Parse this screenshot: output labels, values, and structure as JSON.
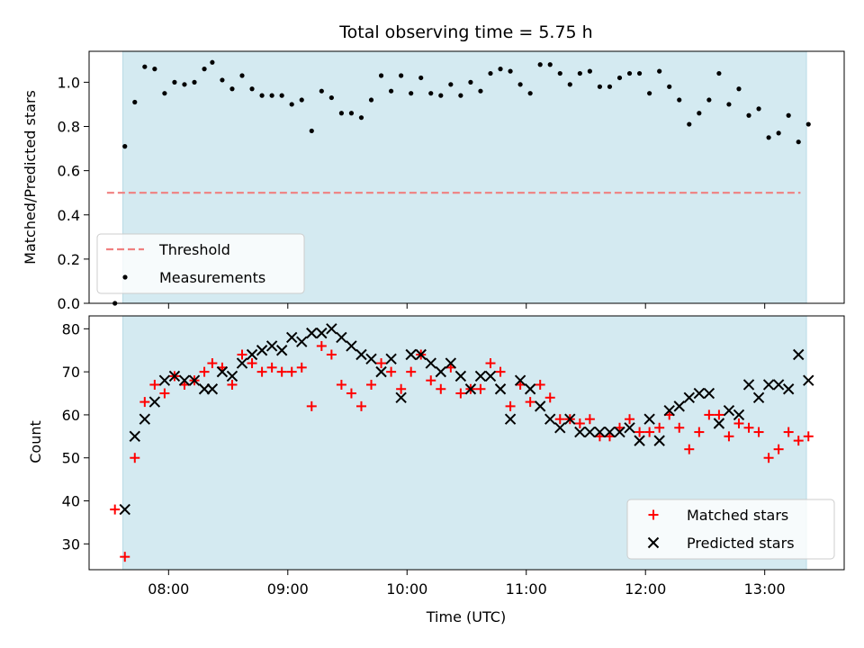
{
  "title": "Total observing time = 5.75 h",
  "colors": {
    "observing_band": "#d4eaf1",
    "threshold": "#f08080",
    "measurements": "#000000",
    "matched": "#ff0000",
    "predicted": "#000000"
  },
  "chart_data": [
    {
      "type": "scatter",
      "ylabel": "Matched/Predicted stars",
      "xlim": [
        "07:20",
        "13:40"
      ],
      "ylim": [
        0,
        1.14
      ],
      "yticks": [
        0.0,
        0.2,
        0.4,
        0.6,
        0.8,
        1.0
      ],
      "ytick_labels": [
        "0.0",
        "0.2",
        "0.4",
        "0.6",
        "0.8",
        "1.0"
      ],
      "xticks": [
        "08:00",
        "09:00",
        "10:00",
        "11:00",
        "12:00",
        "13:00"
      ],
      "shaded_span": [
        "07:37",
        "13:21"
      ],
      "threshold": {
        "name": "Threshold",
        "y": 0.5,
        "x_range": [
          "07:29",
          "13:18"
        ],
        "style": "dashed"
      },
      "legend": {
        "location": "lower-left",
        "entries": [
          "Threshold",
          "Measurements"
        ]
      },
      "series": [
        {
          "name": "Measurements",
          "marker": "dot",
          "points": [
            [
              "07:33",
              0.0
            ],
            [
              "07:38",
              0.71
            ],
            [
              "07:43",
              0.91
            ],
            [
              "07:48",
              1.07
            ],
            [
              "07:53",
              1.06
            ],
            [
              "07:58",
              0.95
            ],
            [
              "08:03",
              1.0
            ],
            [
              "08:08",
              0.99
            ],
            [
              "08:13",
              1.0
            ],
            [
              "08:18",
              1.06
            ],
            [
              "08:22",
              1.09
            ],
            [
              "08:27",
              1.01
            ],
            [
              "08:32",
              0.97
            ],
            [
              "08:37",
              1.03
            ],
            [
              "08:42",
              0.97
            ],
            [
              "08:47",
              0.94
            ],
            [
              "08:52",
              0.94
            ],
            [
              "08:57",
              0.94
            ],
            [
              "09:02",
              0.9
            ],
            [
              "09:07",
              0.92
            ],
            [
              "09:12",
              0.78
            ],
            [
              "09:17",
              0.96
            ],
            [
              "09:22",
              0.93
            ],
            [
              "09:27",
              0.86
            ],
            [
              "09:32",
              0.86
            ],
            [
              "09:37",
              0.84
            ],
            [
              "09:42",
              0.92
            ],
            [
              "09:47",
              1.03
            ],
            [
              "09:52",
              0.96
            ],
            [
              "09:57",
              1.03
            ],
            [
              "10:02",
              0.95
            ],
            [
              "10:07",
              1.02
            ],
            [
              "10:12",
              0.95
            ],
            [
              "10:17",
              0.94
            ],
            [
              "10:22",
              0.99
            ],
            [
              "10:27",
              0.94
            ],
            [
              "10:32",
              1.0
            ],
            [
              "10:37",
              0.96
            ],
            [
              "10:42",
              1.04
            ],
            [
              "10:47",
              1.06
            ],
            [
              "10:52",
              1.05
            ],
            [
              "10:57",
              0.99
            ],
            [
              "11:02",
              0.95
            ],
            [
              "11:07",
              1.08
            ],
            [
              "11:12",
              1.08
            ],
            [
              "11:17",
              1.04
            ],
            [
              "11:22",
              0.99
            ],
            [
              "11:27",
              1.04
            ],
            [
              "11:32",
              1.05
            ],
            [
              "11:37",
              0.98
            ],
            [
              "11:42",
              0.98
            ],
            [
              "11:47",
              1.02
            ],
            [
              "11:52",
              1.04
            ],
            [
              "11:57",
              1.04
            ],
            [
              "12:02",
              0.95
            ],
            [
              "12:07",
              1.05
            ],
            [
              "12:12",
              0.98
            ],
            [
              "12:17",
              0.92
            ],
            [
              "12:22",
              0.81
            ],
            [
              "12:27",
              0.86
            ],
            [
              "12:32",
              0.92
            ],
            [
              "12:37",
              1.04
            ],
            [
              "12:42",
              0.9
            ],
            [
              "12:47",
              0.97
            ],
            [
              "12:52",
              0.85
            ],
            [
              "12:57",
              0.88
            ],
            [
              "13:02",
              0.75
            ],
            [
              "13:07",
              0.77
            ],
            [
              "13:12",
              0.85
            ],
            [
              "13:17",
              0.73
            ],
            [
              "13:22",
              0.81
            ]
          ]
        }
      ]
    },
    {
      "type": "scatter",
      "xlabel": "Time (UTC)",
      "ylabel": "Count",
      "xlim": [
        "07:20",
        "13:40"
      ],
      "ylim": [
        24,
        83
      ],
      "yticks": [
        30,
        40,
        50,
        60,
        70,
        80
      ],
      "ytick_labels": [
        "30",
        "40",
        "50",
        "60",
        "70",
        "80"
      ],
      "xticks": [
        "08:00",
        "09:00",
        "10:00",
        "11:00",
        "12:00",
        "13:00"
      ],
      "shaded_span": [
        "07:37",
        "13:21"
      ],
      "legend": {
        "location": "lower-right",
        "entries": [
          "Matched stars",
          "Predicted stars"
        ]
      },
      "series": [
        {
          "name": "Matched stars",
          "marker": "plus",
          "points": [
            [
              "07:33",
              38
            ],
            [
              "07:38",
              27
            ],
            [
              "07:43",
              50
            ],
            [
              "07:48",
              63
            ],
            [
              "07:53",
              67
            ],
            [
              "07:58",
              65
            ],
            [
              "08:03",
              69
            ],
            [
              "08:08",
              67
            ],
            [
              "08:13",
              68
            ],
            [
              "08:18",
              70
            ],
            [
              "08:22",
              72
            ],
            [
              "08:27",
              71
            ],
            [
              "08:32",
              67
            ],
            [
              "08:37",
              74
            ],
            [
              "08:42",
              72
            ],
            [
              "08:47",
              70
            ],
            [
              "08:52",
              71
            ],
            [
              "08:57",
              70
            ],
            [
              "09:02",
              70
            ],
            [
              "09:07",
              71
            ],
            [
              "09:12",
              62
            ],
            [
              "09:17",
              76
            ],
            [
              "09:22",
              74
            ],
            [
              "09:27",
              67
            ],
            [
              "09:32",
              65
            ],
            [
              "09:37",
              62
            ],
            [
              "09:42",
              67
            ],
            [
              "09:47",
              72
            ],
            [
              "09:52",
              70
            ],
            [
              "09:57",
              66
            ],
            [
              "10:02",
              70
            ],
            [
              "10:07",
              74
            ],
            [
              "10:12",
              68
            ],
            [
              "10:17",
              66
            ],
            [
              "10:22",
              71
            ],
            [
              "10:27",
              65
            ],
            [
              "10:32",
              66
            ],
            [
              "10:37",
              66
            ],
            [
              "10:42",
              72
            ],
            [
              "10:47",
              70
            ],
            [
              "10:52",
              62
            ],
            [
              "10:57",
              67
            ],
            [
              "11:02",
              63
            ],
            [
              "11:07",
              67
            ],
            [
              "11:12",
              64
            ],
            [
              "11:17",
              59
            ],
            [
              "11:22",
              59
            ],
            [
              "11:27",
              58
            ],
            [
              "11:32",
              59
            ],
            [
              "11:37",
              55
            ],
            [
              "11:42",
              55
            ],
            [
              "11:47",
              57
            ],
            [
              "11:52",
              59
            ],
            [
              "11:57",
              56
            ],
            [
              "12:02",
              56
            ],
            [
              "12:07",
              57
            ],
            [
              "12:12",
              60
            ],
            [
              "12:17",
              57
            ],
            [
              "12:22",
              52
            ],
            [
              "12:27",
              56
            ],
            [
              "12:32",
              60
            ],
            [
              "12:37",
              60
            ],
            [
              "12:42",
              55
            ],
            [
              "12:47",
              58
            ],
            [
              "12:52",
              57
            ],
            [
              "12:57",
              56
            ],
            [
              "13:02",
              50
            ],
            [
              "13:07",
              52
            ],
            [
              "13:12",
              56
            ],
            [
              "13:17",
              54
            ],
            [
              "13:22",
              55
            ]
          ]
        },
        {
          "name": "Predicted stars",
          "marker": "x",
          "points": [
            [
              "07:38",
              38
            ],
            [
              "07:43",
              55
            ],
            [
              "07:48",
              59
            ],
            [
              "07:53",
              63
            ],
            [
              "07:58",
              68
            ],
            [
              "08:03",
              69
            ],
            [
              "08:08",
              68
            ],
            [
              "08:13",
              68
            ],
            [
              "08:18",
              66
            ],
            [
              "08:22",
              66
            ],
            [
              "08:27",
              70
            ],
            [
              "08:32",
              69
            ],
            [
              "08:37",
              72
            ],
            [
              "08:42",
              74
            ],
            [
              "08:47",
              75
            ],
            [
              "08:52",
              76
            ],
            [
              "08:57",
              75
            ],
            [
              "09:02",
              78
            ],
            [
              "09:07",
              77
            ],
            [
              "09:12",
              79
            ],
            [
              "09:17",
              79
            ],
            [
              "09:22",
              80
            ],
            [
              "09:27",
              78
            ],
            [
              "09:32",
              76
            ],
            [
              "09:37",
              74
            ],
            [
              "09:42",
              73
            ],
            [
              "09:47",
              70
            ],
            [
              "09:52",
              73
            ],
            [
              "09:57",
              64
            ],
            [
              "10:02",
              74
            ],
            [
              "10:07",
              74
            ],
            [
              "10:12",
              72
            ],
            [
              "10:17",
              70
            ],
            [
              "10:22",
              72
            ],
            [
              "10:27",
              69
            ],
            [
              "10:32",
              66
            ],
            [
              "10:37",
              69
            ],
            [
              "10:42",
              69
            ],
            [
              "10:47",
              66
            ],
            [
              "10:52",
              59
            ],
            [
              "10:57",
              68
            ],
            [
              "11:02",
              66
            ],
            [
              "11:07",
              62
            ],
            [
              "11:12",
              59
            ],
            [
              "11:17",
              57
            ],
            [
              "11:22",
              59
            ],
            [
              "11:27",
              56
            ],
            [
              "11:32",
              56
            ],
            [
              "11:37",
              56
            ],
            [
              "11:42",
              56
            ],
            [
              "11:47",
              56
            ],
            [
              "11:52",
              57
            ],
            [
              "11:57",
              54
            ],
            [
              "12:02",
              59
            ],
            [
              "12:07",
              54
            ],
            [
              "12:12",
              61
            ],
            [
              "12:17",
              62
            ],
            [
              "12:22",
              64
            ],
            [
              "12:27",
              65
            ],
            [
              "12:32",
              65
            ],
            [
              "12:37",
              58
            ],
            [
              "12:42",
              61
            ],
            [
              "12:47",
              60
            ],
            [
              "12:52",
              67
            ],
            [
              "12:57",
              64
            ],
            [
              "13:02",
              67
            ],
            [
              "13:07",
              67
            ],
            [
              "13:12",
              66
            ],
            [
              "13:17",
              74
            ],
            [
              "13:22",
              68
            ]
          ]
        }
      ]
    }
  ]
}
